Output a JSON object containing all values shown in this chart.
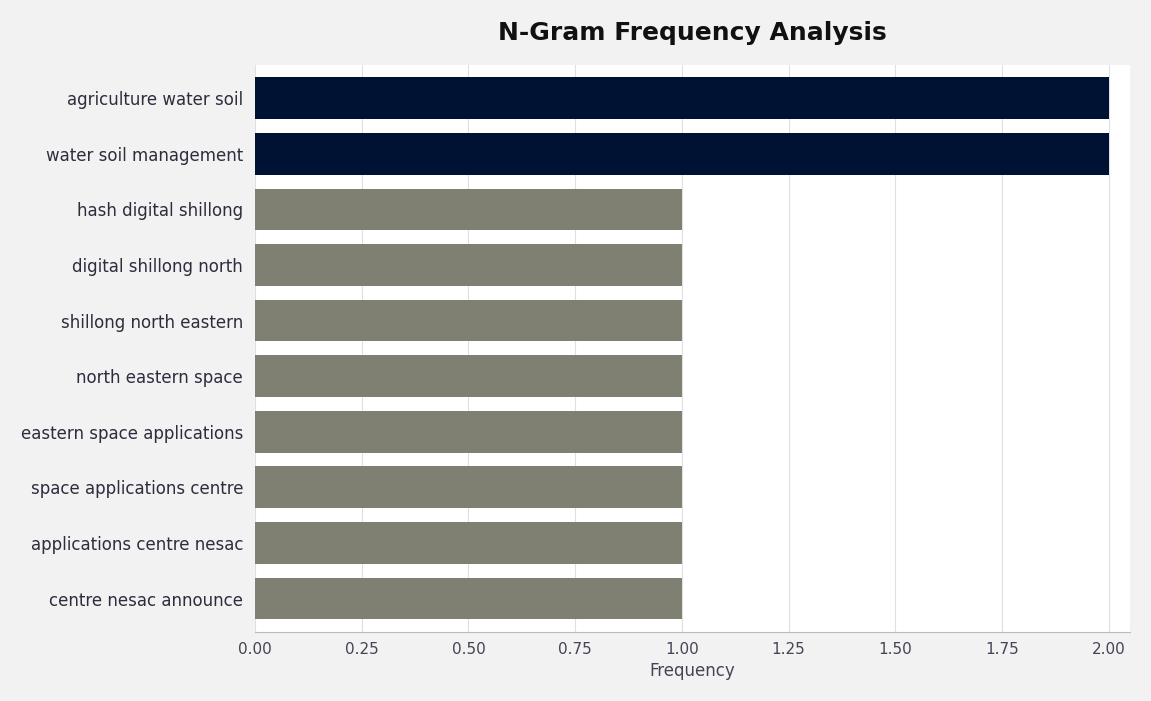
{
  "title": "N-Gram Frequency Analysis",
  "categories": [
    "centre nesac announce",
    "applications centre nesac",
    "space applications centre",
    "eastern space applications",
    "north eastern space",
    "shillong north eastern",
    "digital shillong north",
    "hash digital shillong",
    "water soil management",
    "agriculture water soil"
  ],
  "values": [
    1,
    1,
    1,
    1,
    1,
    1,
    1,
    1,
    2,
    2
  ],
  "bar_colors": [
    "#7f7f72",
    "#7f7f72",
    "#7f7f72",
    "#7f7f72",
    "#7f7f72",
    "#7f7f72",
    "#7f7f72",
    "#7f7f72",
    "#001233",
    "#001233"
  ],
  "xlabel": "Frequency",
  "xlim": [
    0,
    2.05
  ],
  "xticks": [
    0.0,
    0.25,
    0.5,
    0.75,
    1.0,
    1.25,
    1.5,
    1.75,
    2.0
  ],
  "outer_bg": "#f2f2f2",
  "plot_bg": "#ffffff",
  "title_fontsize": 18,
  "label_fontsize": 12,
  "tick_fontsize": 11,
  "bar_height": 0.75
}
